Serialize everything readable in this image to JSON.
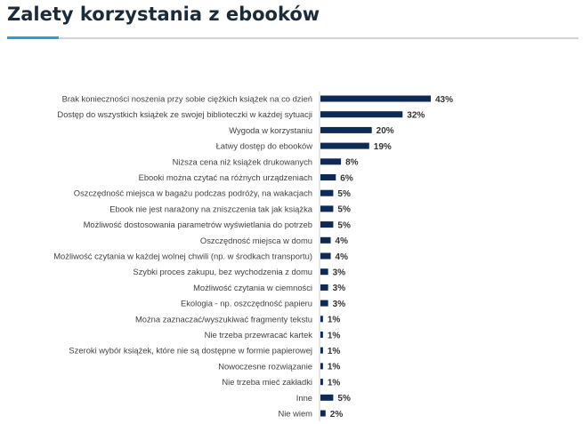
{
  "header": {
    "title": "Zalety korzystania z ebooków",
    "accent_color": "#1ea3e0"
  },
  "chart_data": {
    "type": "bar",
    "orientation": "horizontal",
    "title": "",
    "xlabel": "",
    "ylabel": "",
    "xlim": [
      0,
      43
    ],
    "bar_color": "#0e2a56",
    "categories": [
      "Brak konieczności noszenia przy sobie ciężkich książek na co dzień",
      "Dostęp do wszystkich książek ze swojej biblioteczki w każdej sytuacji",
      "Wygoda w korzystaniu",
      "Łatwy dostęp do ebooków",
      "Niższa cena niż książek drukowanych",
      "Ebooki można czytać na różnych urządzeniach",
      "Oszczędność miejsca w bagażu podczas podróży, na wakacjach",
      "Ebook nie jest narażony na zniszczenia tak jak książka",
      "Możliwość dostosowania parametrów wyświetlania do potrzeb",
      "Oszczędność miejsca w domu",
      "Możliwość czytania w każdej wolnej chwili (np. w środkach transportu)",
      "Szybki proces zakupu, bez wychodzenia z domu",
      "Możliwość czytania w ciemności",
      "Ekologia - np. oszczędność papieru",
      "Można zaznaczać/wyszukiwać fragmenty tekstu",
      "Nie trzeba przewracać kartek",
      "Szeroki wybór książek, które nie są dostępne w formie papierowej",
      "Nowoczesne rozwiązanie",
      "Nie trzeba mieć zakładki",
      "Inne",
      "Nie wiem"
    ],
    "values": [
      43,
      32,
      20,
      19,
      8,
      6,
      5,
      5,
      5,
      4,
      4,
      3,
      3,
      3,
      1,
      1,
      1,
      1,
      1,
      5,
      2
    ],
    "value_labels": [
      "43%",
      "32%",
      "20%",
      "19%",
      "8%",
      "6%",
      "5%",
      "5%",
      "5%",
      "4%",
      "4%",
      "3%",
      "3%",
      "3%",
      "1%",
      "1%",
      "1%",
      "1%",
      "1%",
      "5%",
      "2%"
    ]
  }
}
